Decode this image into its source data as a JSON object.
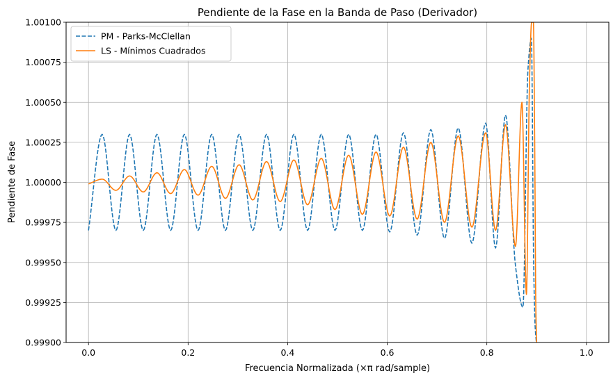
{
  "chart_data": {
    "type": "line",
    "title": "Pendiente de la Fase en la Banda de Paso (Derivador)",
    "xlabel": "Frecuencia Normalizada (×π rad/sample)",
    "ylabel": "Pendiente de Fase",
    "xlim": [
      -0.045,
      1.045
    ],
    "ylim": [
      0.999,
      1.001
    ],
    "xticks": [
      0.0,
      0.2,
      0.4,
      0.6,
      0.8,
      1.0
    ],
    "xtick_labels": [
      "0.0",
      "0.2",
      "0.4",
      "0.6",
      "0.8",
      "1.0"
    ],
    "yticks": [
      0.999,
      0.99925,
      0.9995,
      0.99975,
      1.0,
      1.00025,
      1.0005,
      1.00075,
      1.001
    ],
    "ytick_labels": [
      "0.99900",
      "0.99925",
      "0.99950",
      "0.99975",
      "1.00000",
      "1.00025",
      "1.00050",
      "1.00075",
      "1.00100"
    ],
    "grid": true,
    "legend_position": "top-left",
    "series": [
      {
        "name": "PM - Parks-McClellan",
        "color": "#1f77b4",
        "dash": "dashed",
        "x": [
          0.0,
          0.0275,
          0.055,
          0.0825,
          0.11,
          0.1375,
          0.165,
          0.1925,
          0.22,
          0.2475,
          0.275,
          0.3025,
          0.33,
          0.3575,
          0.385,
          0.4125,
          0.44,
          0.4675,
          0.495,
          0.5225,
          0.55,
          0.5775,
          0.605,
          0.6325,
          0.66,
          0.6875,
          0.715,
          0.7425,
          0.77,
          0.7975,
          0.8175,
          0.8375,
          0.8575,
          0.8725,
          0.8825,
          0.8895,
          0.894,
          0.897,
          0.8995
        ],
        "y": [
          0.9997,
          1.0003,
          0.9997,
          1.0003,
          0.9997,
          1.0003,
          0.9997,
          1.0003,
          0.9997,
          1.0003,
          0.9997,
          1.0003,
          0.9997,
          1.0003,
          0.9997,
          1.0003,
          0.9997,
          1.0003,
          0.9997,
          1.0003,
          0.9997,
          1.0003,
          0.99969,
          1.00031,
          0.99967,
          1.00033,
          0.99965,
          1.00034,
          0.99962,
          1.00037,
          0.99959,
          1.00042,
          0.99948,
          0.99922,
          1.0007,
          1.0009,
          0.9995,
          0.9991,
          0.999
        ]
      },
      {
        "name": "LS - Mínimos Cuadrados",
        "color": "#ff7f0e",
        "dash": "solid",
        "x": [
          0.0,
          0.0275,
          0.055,
          0.0825,
          0.11,
          0.1375,
          0.165,
          0.1925,
          0.22,
          0.2475,
          0.275,
          0.3025,
          0.33,
          0.3575,
          0.385,
          0.4125,
          0.44,
          0.4675,
          0.495,
          0.5225,
          0.55,
          0.5775,
          0.605,
          0.6325,
          0.66,
          0.6875,
          0.715,
          0.7425,
          0.77,
          0.7975,
          0.8175,
          0.8375,
          0.8575,
          0.8705,
          0.8795,
          0.8855,
          0.89,
          0.8935,
          0.896,
          0.8985,
          0.9
        ],
        "y": [
          0.99999,
          1.00002,
          0.99995,
          1.00004,
          0.99994,
          1.00006,
          0.99993,
          1.00008,
          0.99992,
          1.0001,
          0.9999,
          1.00011,
          0.99989,
          1.00013,
          0.99988,
          1.00014,
          0.99986,
          1.00015,
          0.99983,
          1.00017,
          0.9998,
          1.00019,
          0.99979,
          1.00022,
          0.99977,
          1.00025,
          0.99975,
          1.00029,
          0.99972,
          1.00031,
          0.9997,
          1.00036,
          0.9996,
          1.0005,
          0.9993,
          1.0006,
          1.001,
          1.001,
          1.0003,
          0.9992,
          0.999
        ]
      }
    ]
  }
}
